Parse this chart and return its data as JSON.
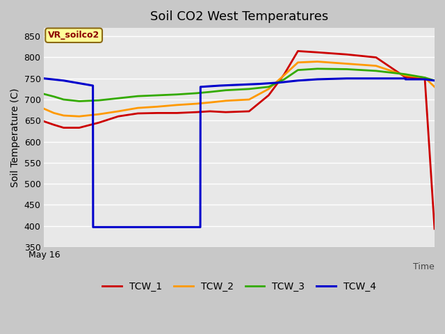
{
  "title": "Soil CO2 West Temperatures",
  "ylabel": "Soil Temperature (C)",
  "xlabel_text": "Time",
  "xlim": [
    0,
    20
  ],
  "ylim": [
    350,
    870
  ],
  "yticks": [
    350,
    400,
    450,
    500,
    550,
    600,
    650,
    700,
    750,
    800,
    850
  ],
  "x_start_label": "May 16",
  "fig_facecolor": "#c8c8c8",
  "ax_facecolor": "#e8e8e8",
  "grid_color": "#ffffff",
  "annotation_text": "VR_soilco2",
  "annotation_facecolor": "#ffff99",
  "annotation_textcolor": "#8b0000",
  "annotation_edgecolor": "#8b6914",
  "series": {
    "TCW_1": {
      "color": "#cc0000",
      "linewidth": 2.0,
      "x": [
        0,
        0.5,
        1.0,
        1.8,
        2.8,
        3.8,
        4.8,
        5.8,
        6.8,
        7.8,
        8.5,
        9.3,
        10.5,
        11.5,
        12.3,
        13.0,
        14.0,
        15.5,
        17.0,
        18.5,
        19.5,
        20.0
      ],
      "y": [
        648,
        640,
        633,
        633,
        645,
        660,
        667,
        668,
        668,
        670,
        672,
        670,
        672,
        710,
        760,
        815,
        812,
        807,
        800,
        753,
        750,
        393
      ]
    },
    "TCW_2": {
      "color": "#ff9900",
      "linewidth": 2.0,
      "x": [
        0,
        0.5,
        1.0,
        1.8,
        2.8,
        3.8,
        4.8,
        5.8,
        6.8,
        7.8,
        8.5,
        9.3,
        10.5,
        11.5,
        12.3,
        13.0,
        14.0,
        15.5,
        17.0,
        18.5,
        19.5,
        20.0
      ],
      "y": [
        678,
        668,
        662,
        660,
        665,
        672,
        680,
        683,
        687,
        690,
        693,
        697,
        700,
        725,
        758,
        788,
        790,
        785,
        780,
        757,
        752,
        730
      ]
    },
    "TCW_3": {
      "color": "#33aa00",
      "linewidth": 2.0,
      "x": [
        0,
        0.5,
        1.0,
        1.8,
        2.8,
        3.8,
        4.8,
        5.8,
        6.8,
        7.8,
        8.5,
        9.3,
        10.5,
        11.5,
        12.3,
        13.0,
        14.0,
        15.5,
        17.0,
        18.5,
        19.5,
        20.0
      ],
      "y": [
        713,
        707,
        700,
        696,
        698,
        703,
        708,
        710,
        712,
        715,
        718,
        722,
        725,
        730,
        748,
        770,
        773,
        772,
        768,
        760,
        752,
        745
      ]
    },
    "TCW_4": {
      "color": "#0000cc",
      "linewidth": 2.2,
      "x": [
        0,
        1.0,
        2.0,
        2.5,
        2.51,
        3.5,
        4.5,
        5.5,
        6.5,
        7.5,
        8.0,
        8.01,
        9.0,
        10.0,
        11.0,
        12.0,
        13.0,
        14.0,
        15.5,
        17.0,
        18.5,
        18.51,
        19.5,
        20.0
      ],
      "y": [
        750,
        745,
        737,
        733,
        397,
        397,
        397,
        397,
        397,
        397,
        397,
        730,
        733,
        735,
        737,
        740,
        745,
        748,
        750,
        750,
        750,
        748,
        748,
        745
      ]
    }
  },
  "legend_order": [
    "TCW_1",
    "TCW_2",
    "TCW_3",
    "TCW_4"
  ]
}
